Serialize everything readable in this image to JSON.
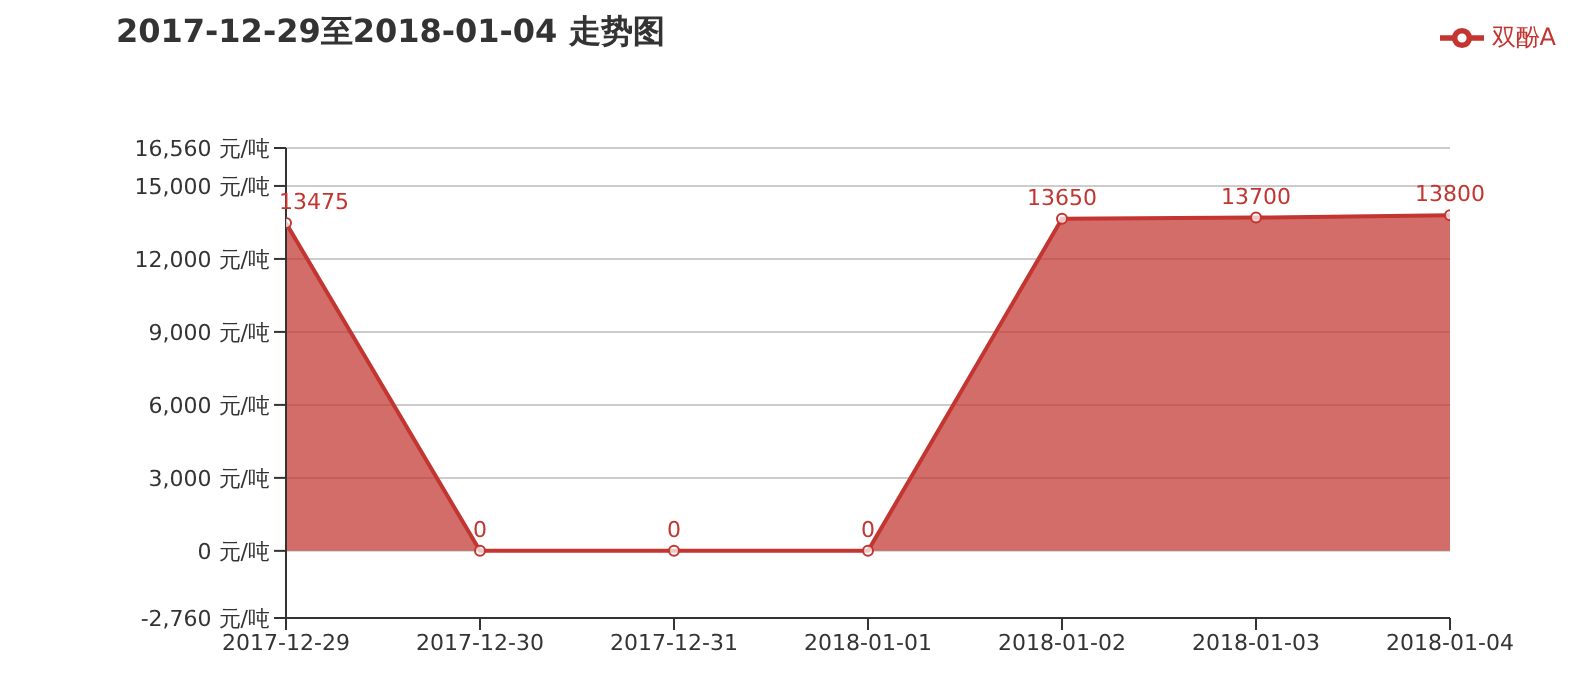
{
  "chart_data": {
    "type": "area",
    "title": "2017-12-29至2018-01-04 走势图",
    "categories": [
      "2017-12-29",
      "2017-12-30",
      "2017-12-31",
      "2018-01-01",
      "2018-01-02",
      "2018-01-03",
      "2018-01-04"
    ],
    "series": [
      {
        "name": "双酚A",
        "color": "#c23531",
        "values": [
          13475,
          0,
          0,
          0,
          13650,
          13700,
          13800
        ]
      }
    ],
    "ylim": [
      -2760,
      16560
    ],
    "yticks": [
      {
        "value": -2760,
        "label": "-2,760 元/吨"
      },
      {
        "value": 0,
        "label": "0 元/吨"
      },
      {
        "value": 3000,
        "label": "3,000 元/吨"
      },
      {
        "value": 6000,
        "label": "6,000 元/吨"
      },
      {
        "value": 9000,
        "label": "9,000 元/吨"
      },
      {
        "value": 12000,
        "label": "12,000 元/吨"
      },
      {
        "value": 15000,
        "label": "15,000 元/吨"
      },
      {
        "value": 16560,
        "label": "16,560 元/吨"
      }
    ],
    "grid": "y",
    "legend": "top right",
    "marker": "circle",
    "data_labels": true
  }
}
